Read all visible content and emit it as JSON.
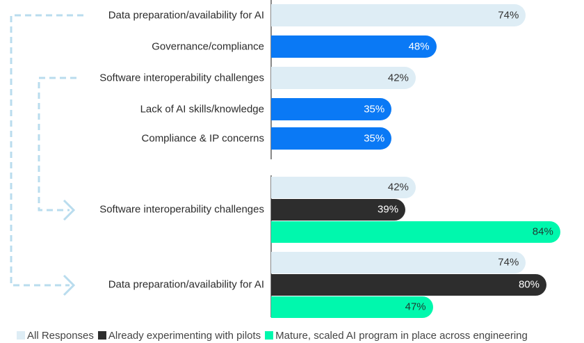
{
  "chart_data": {
    "type": "bar",
    "orientation": "horizontal",
    "colors": {
      "all": "#deedf5",
      "highlight": "#0a79f5",
      "pilots": "#2d2d2d",
      "mature": "#00f8ad",
      "connector": "#b9dcee"
    },
    "top_group": {
      "categories": [
        "Data preparation/availability for AI",
        "Governance/compliance",
        "Software interoperability challenges",
        "Lack of AI skills/knowledge",
        "Compliance & IP concerns"
      ],
      "values": [
        74,
        48,
        42,
        35,
        35
      ],
      "color_keys": [
        "all",
        "highlight",
        "all",
        "highlight",
        "highlight"
      ]
    },
    "bottom_group": {
      "categories": [
        "Software interoperability challenges",
        "Data preparation/availability for AI"
      ],
      "series": [
        {
          "name": "All Responses",
          "key": "all",
          "values": [
            42,
            74
          ]
        },
        {
          "name": "Already experimenting with pilots",
          "key": "pilots",
          "values": [
            39,
            80
          ]
        },
        {
          "name": "Mature, scaled AI program in place across engineering",
          "key": "mature",
          "values": [
            84,
            47
          ]
        }
      ]
    },
    "value_suffix": "%",
    "legend_position": "bottom"
  }
}
